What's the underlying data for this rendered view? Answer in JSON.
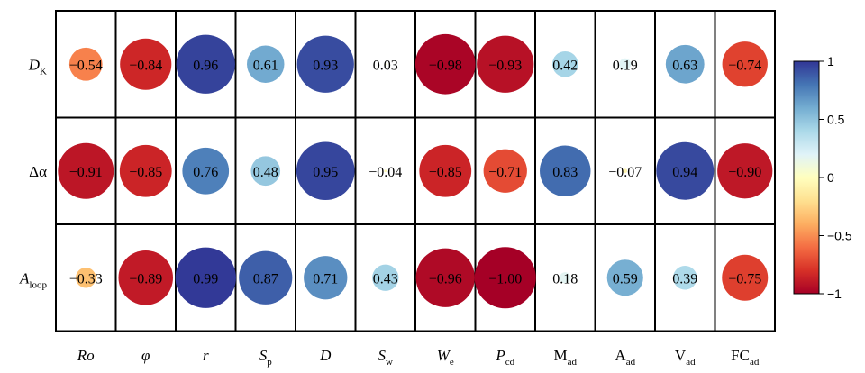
{
  "chart_data": {
    "type": "heatmap",
    "rows": [
      {
        "name": "D",
        "sub": "K",
        "italic": true
      },
      {
        "name": "Δα",
        "sub": "",
        "italic": false
      },
      {
        "name": "A",
        "sub": "loop",
        "italic": true
      }
    ],
    "columns": [
      {
        "name": "Ro",
        "sub": "",
        "italic": true
      },
      {
        "name": "φ",
        "sub": "",
        "italic": true
      },
      {
        "name": "r",
        "sub": "",
        "italic": true
      },
      {
        "name": "S",
        "sub": "p",
        "italic": true
      },
      {
        "name": "D",
        "sub": "",
        "italic": true
      },
      {
        "name": "S",
        "sub": "w",
        "italic": true
      },
      {
        "name": "W",
        "sub": "e",
        "italic": true
      },
      {
        "name": "P",
        "sub": "cd",
        "italic": true
      },
      {
        "name": "M",
        "sub": "ad",
        "italic": false
      },
      {
        "name": "A",
        "sub": "ad",
        "italic": false
      },
      {
        "name": "V",
        "sub": "ad",
        "italic": false
      },
      {
        "name": "FC",
        "sub": "ad",
        "italic": false
      }
    ],
    "values": [
      [
        -0.54,
        -0.84,
        0.96,
        0.61,
        0.93,
        0.03,
        -0.98,
        -0.93,
        0.42,
        0.19,
        0.63,
        -0.74
      ],
      [
        -0.91,
        -0.85,
        0.76,
        0.48,
        0.95,
        -0.04,
        -0.85,
        -0.71,
        0.83,
        -0.07,
        0.94,
        -0.9
      ],
      [
        -0.33,
        -0.89,
        0.99,
        0.87,
        0.71,
        0.43,
        -0.96,
        -1.0,
        0.18,
        0.59,
        0.39,
        -0.75
      ]
    ],
    "value_labels": [
      [
        "−0.54",
        "−0.84",
        "0.96",
        "0.61",
        "0.93",
        "0.03",
        "−0.98",
        "−0.93",
        "0.42",
        "0.19",
        "0.63",
        "−0.74"
      ],
      [
        "−0.91",
        "−0.85",
        "0.76",
        "0.48",
        "0.95",
        "−0.04",
        "−0.85",
        "−0.71",
        "0.83",
        "−0.07",
        "0.94",
        "−0.90"
      ],
      [
        "−0.33",
        "−0.89",
        "0.99",
        "0.87",
        "0.71",
        "0.43",
        "−0.96",
        "−1.00",
        "0.18",
        "0.59",
        "0.39",
        "−0.75"
      ]
    ],
    "colorbar": {
      "range": [
        -1,
        1
      ],
      "ticks": [
        1,
        0.5,
        0,
        -0.5,
        -1
      ],
      "tick_labels": [
        "1",
        "0.5",
        "0",
        "−0.5",
        "−1"
      ],
      "colormap": "RdYlBu"
    },
    "marker_size_encodes": "absolute value",
    "grid": true
  }
}
